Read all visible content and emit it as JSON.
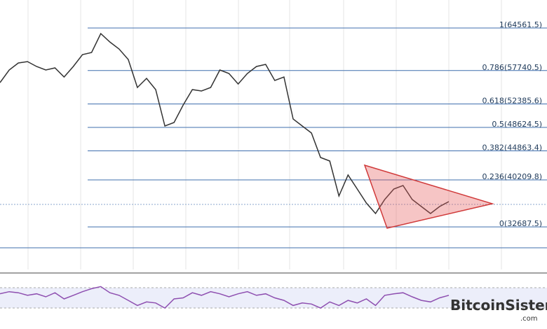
{
  "chart_data": {
    "type": "line",
    "ylim": [
      25850,
      69050
    ],
    "fib_levels": [
      {
        "value": 64561.5,
        "label": "1(64561.5)"
      },
      {
        "value": 57740.5,
        "label": "0.786(57740.5)"
      },
      {
        "value": 52385.6,
        "label": "0.618(52385.6)"
      },
      {
        "value": 48624.5,
        "label": "0.5(48624.5)"
      },
      {
        "value": 44863.4,
        "label": "0.382(44863.4)"
      },
      {
        "value": 40209.8,
        "label": "0.236(40209.8)"
      },
      {
        "value": 32687.5,
        "label": "0(32687.5)"
      }
    ],
    "fib_color": "#3f6fae",
    "series": [
      {
        "color": "#333333",
        "values": [
          55810,
          57830,
          58950,
          59176,
          58390,
          57830,
          58166,
          56707,
          58390,
          60298,
          60635,
          63664,
          62318,
          61196,
          59513,
          55025,
          56483,
          54688,
          48854,
          49415,
          52220,
          54688,
          54464,
          55025,
          57830,
          57269,
          55586,
          57269,
          58390,
          58727,
          56147,
          56707,
          49976,
          48854,
          47732,
          43805,
          43244,
          37634,
          40999,
          38756,
          36512,
          34829,
          37073,
          38756,
          39317,
          37073,
          35951,
          34829,
          35951,
          36736
        ]
      }
    ],
    "rsi": {
      "ylim": [
        0,
        100
      ],
      "band": [
        30,
        70
      ],
      "color": "#8e4fb0",
      "values": [
        58,
        62,
        60,
        55,
        58,
        52,
        60,
        48,
        55,
        62,
        68,
        72,
        60,
        55,
        45,
        35,
        42,
        40,
        30,
        48,
        50,
        60,
        55,
        62,
        58,
        52,
        58,
        62,
        55,
        58,
        50,
        45,
        35,
        40,
        38,
        30,
        42,
        35,
        45,
        40,
        48,
        35,
        55,
        58,
        60,
        52,
        45,
        42,
        50,
        55
      ]
    },
    "watermark": {
      "name": "BitcoinSistemi",
      "domain": ".com"
    }
  }
}
